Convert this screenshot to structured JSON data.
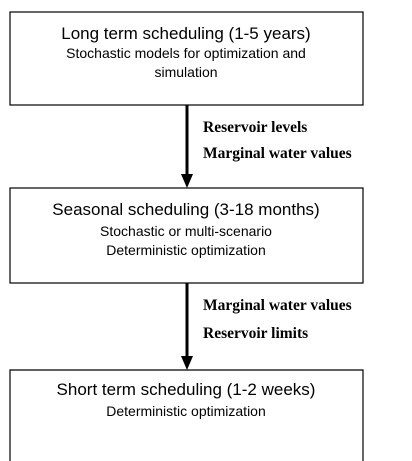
{
  "nodes": [
    {
      "title": "Long term scheduling (1-5 years)",
      "lines": [
        "Stochastic models for optimization and",
        "simulation"
      ]
    },
    {
      "title": "Seasonal scheduling (3-18 months)",
      "lines": [
        "Stochastic or multi-scenario",
        "Deterministic optimization"
      ]
    },
    {
      "title": "Short term scheduling (1-2 weeks)",
      "lines": [
        "Deterministic optimization"
      ]
    }
  ],
  "edges": [
    {
      "labels": [
        "Reservoir levels",
        "Marginal water values"
      ]
    },
    {
      "labels": [
        "Marginal water values",
        "Reservoir limits"
      ]
    }
  ]
}
